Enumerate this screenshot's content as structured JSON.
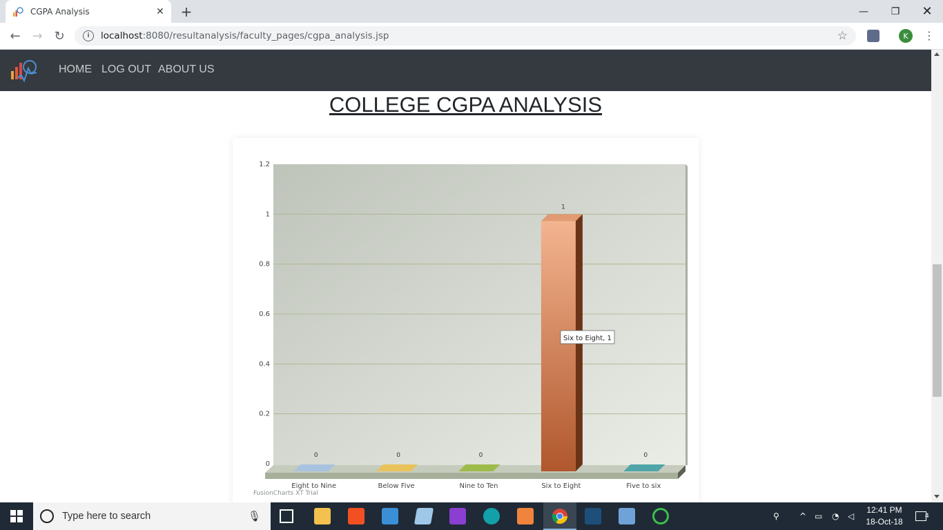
{
  "browser": {
    "tab_title": "CGPA Analysis",
    "url_host": "localhost",
    "url_rest": ":8080/resultanalysis/faculty_pages/cgpa_analysis.jsp",
    "profile_initial": "K"
  },
  "nav": {
    "links": [
      "HOME",
      "LOG OUT",
      "ABOUT US"
    ]
  },
  "page": {
    "title": "COLLEGE CGPA ANALYSIS"
  },
  "chart_data": {
    "type": "bar",
    "categories": [
      "Eight to Nine",
      "Below Five",
      "Nine to Ten",
      "Six to Eight",
      "Five to six"
    ],
    "values": [
      0,
      0,
      0,
      1,
      0
    ],
    "colors": [
      "#a8c3e0",
      "#e8c25a",
      "#9dbb4a",
      "#d9845a",
      "#4fa5a8"
    ],
    "ylim": [
      0,
      1.2
    ],
    "yticks": [
      "0",
      "0.2",
      "0.4",
      "0.6",
      "0.8",
      "1",
      "1.2"
    ],
    "tooltip": "Six to Eight, 1",
    "watermark": "FusionCharts XT Trial"
  },
  "taskbar": {
    "search_placeholder": "Type here to search",
    "time": "12:41 PM",
    "date": "18-Oct-18",
    "notif_count": "4"
  }
}
